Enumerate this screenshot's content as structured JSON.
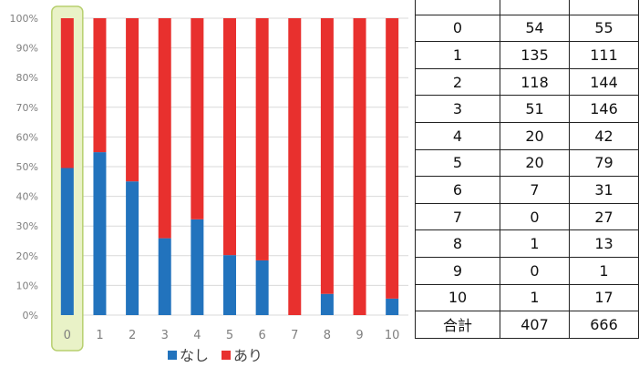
{
  "chart_data": {
    "type": "bar",
    "stacked": "percent",
    "categories": [
      "0",
      "1",
      "2",
      "3",
      "4",
      "5",
      "6",
      "7",
      "8",
      "9",
      "10"
    ],
    "series": [
      {
        "name": "なし",
        "color": "#2273bd",
        "values": [
          54,
          135,
          118,
          51,
          20,
          20,
          7,
          0,
          1,
          0,
          1
        ]
      },
      {
        "name": "あり",
        "color": "#e8302e",
        "values": [
          55,
          111,
          144,
          146,
          42,
          79,
          31,
          27,
          13,
          1,
          17
        ]
      }
    ],
    "yticks": [
      "0%",
      "10%",
      "20%",
      "30%",
      "40%",
      "50%",
      "60%",
      "70%",
      "80%",
      "90%",
      "100%"
    ],
    "ylim": [
      0,
      100
    ],
    "grid": true,
    "highlighted_category": "0",
    "legend_position": "bottom"
  },
  "table": {
    "header": [
      "",
      "",
      ""
    ],
    "rows": [
      [
        "0",
        "54",
        "55"
      ],
      [
        "1",
        "135",
        "111"
      ],
      [
        "2",
        "118",
        "144"
      ],
      [
        "3",
        "51",
        "146"
      ],
      [
        "4",
        "20",
        "42"
      ],
      [
        "5",
        "20",
        "79"
      ],
      [
        "6",
        "7",
        "31"
      ],
      [
        "7",
        "0",
        "27"
      ],
      [
        "8",
        "1",
        "13"
      ],
      [
        "9",
        "0",
        "1"
      ],
      [
        "10",
        "1",
        "17"
      ]
    ],
    "total": [
      "合計",
      "407",
      "666"
    ]
  }
}
